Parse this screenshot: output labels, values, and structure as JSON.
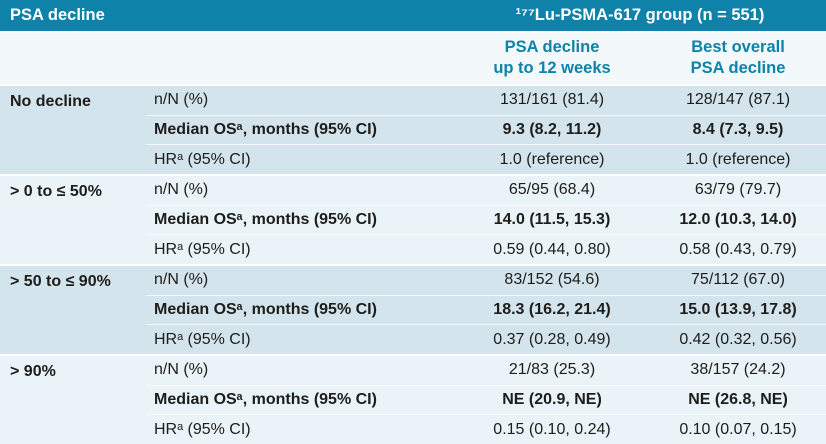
{
  "colors": {
    "teal": "#0e82a9",
    "band_dark": "#d3e4ed",
    "band_light": "#eaf3f7",
    "subheader_bg": "#f3f9fb",
    "header_text": "#ffffff",
    "body_text": "#1d1d1b"
  },
  "header": {
    "title": "PSA decline",
    "group": "¹⁷⁷Lu-PSMA-617 group (n = 551)",
    "col1": "PSA decline\nup to 12 weeks",
    "col2": "Best overall\nPSA decline"
  },
  "groups": [
    {
      "category": "No decline",
      "rows": [
        {
          "label": "n/N (%)",
          "v1": "131/161 (81.4)",
          "v2": "128/147 (87.1)"
        },
        {
          "label": "Median OSᵃ, months (95% CI)",
          "v1": "9.3 (8.2, 11.2)",
          "v2": "8.4 (7.3, 9.5)"
        },
        {
          "label": "HRᵃ (95% CI)",
          "v1": "1.0 (reference)",
          "v2": "1.0 (reference)"
        }
      ]
    },
    {
      "category": "> 0 to ≤ 50%",
      "rows": [
        {
          "label": "n/N (%)",
          "v1": "65/95 (68.4)",
          "v2": "63/79 (79.7)"
        },
        {
          "label": "Median OSᵃ, months (95% CI)",
          "v1": "14.0 (11.5, 15.3)",
          "v2": "12.0 (10.3, 14.0)"
        },
        {
          "label": "HRᵃ (95% CI)",
          "v1": "0.59 (0.44, 0.80)",
          "v2": "0.58 (0.43, 0.79)"
        }
      ]
    },
    {
      "category": "> 50 to ≤ 90%",
      "rows": [
        {
          "label": "n/N (%)",
          "v1": "83/152 (54.6)",
          "v2": "75/112 (67.0)"
        },
        {
          "label": "Median OSᵃ, months (95% CI)",
          "v1": "18.3 (16.2, 21.4)",
          "v2": "15.0 (13.9, 17.8)"
        },
        {
          "label": "HRᵃ (95% CI)",
          "v1": "0.37 (0.28, 0.49)",
          "v2": "0.42 (0.32, 0.56)"
        }
      ]
    },
    {
      "category": "> 90%",
      "rows": [
        {
          "label": "n/N (%)",
          "v1": "21/83 (25.3)",
          "v2": "38/157 (24.2)"
        },
        {
          "label": "Median OSᵃ, months (95% CI)",
          "v1": "NE (20.9, NE)",
          "v2": "NE (26.8, NE)"
        },
        {
          "label": "HRᵃ (95% CI)",
          "v1": "0.15 (0.10, 0.24)",
          "v2": "0.10 (0.07, 0.15)"
        }
      ]
    }
  ]
}
